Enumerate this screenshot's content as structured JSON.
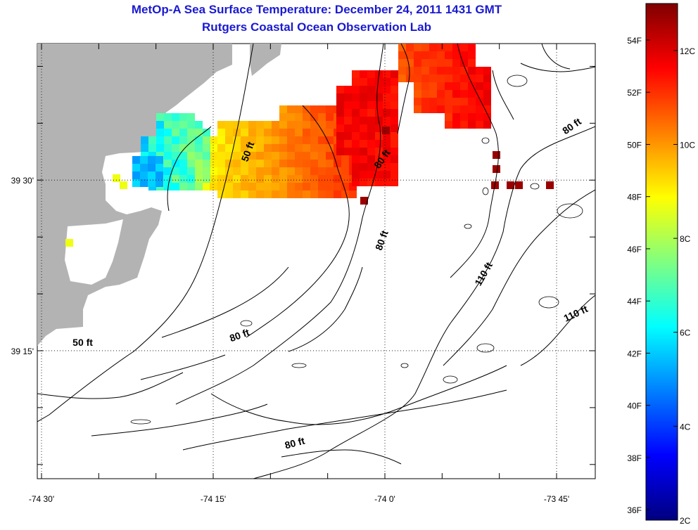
{
  "title": "MetOp-A Sea Surface Temperature:  December 24, 2011 1431 GMT",
  "subtitle": "Rutgers Coastal Ocean Observation Lab",
  "map": {
    "lon_range": [
      -74.5,
      -73.6875
    ],
    "lat_range": [
      39.0625,
      39.7
    ],
    "lon_ticks": [
      {
        "value": -74.5,
        "label": "-74 30'"
      },
      {
        "value": -74.25,
        "label": "-74 15'"
      },
      {
        "value": -74.0,
        "label": "-74 0'"
      },
      {
        "value": -73.75,
        "label": "-73 45'"
      }
    ],
    "lat_ticks": [
      {
        "value": 39.5,
        "label": "39 30'"
      },
      {
        "value": 39.25,
        "label": "39 15'"
      }
    ],
    "grid": "dotted",
    "land_color": "#b3b3b3",
    "contour_labels": [
      {
        "text": "50 ft",
        "lon": -74.195,
        "lat": 39.54,
        "angle": -70
      },
      {
        "text": "80 ft",
        "lon": -74.0,
        "lat": 39.528,
        "angle": -55
      },
      {
        "text": "80 ft",
        "lon": -73.725,
        "lat": 39.575,
        "angle": -35
      },
      {
        "text": "80 ft",
        "lon": -74.0,
        "lat": 39.41,
        "angle": -70
      },
      {
        "text": "110 ft",
        "lon": -73.852,
        "lat": 39.36,
        "angle": -60
      },
      {
        "text": "110 ft",
        "lon": -73.72,
        "lat": 39.3,
        "angle": -25
      },
      {
        "text": "50 ft",
        "lon": -74.44,
        "lat": 39.257,
        "angle": 0
      },
      {
        "text": "80 ft",
        "lon": -74.21,
        "lat": 39.268,
        "angle": -20
      },
      {
        "text": "80 ft",
        "lon": -74.13,
        "lat": 39.11,
        "angle": -15
      }
    ]
  },
  "colorbar": {
    "range_c": [
      2,
      13
    ],
    "celsius_labels": [
      "12C",
      "10C",
      "8C",
      "6C",
      "4C",
      "2C"
    ],
    "celsius_values": [
      12,
      10,
      8,
      6,
      4,
      2
    ],
    "fahrenheit_labels": [
      "54F",
      "52F",
      "50F",
      "48F",
      "46F",
      "44F",
      "42F",
      "40F",
      "38F",
      "36F"
    ],
    "fahrenheit_values": [
      54,
      52,
      50,
      48,
      46,
      44,
      42,
      40,
      38,
      36
    ]
  }
}
